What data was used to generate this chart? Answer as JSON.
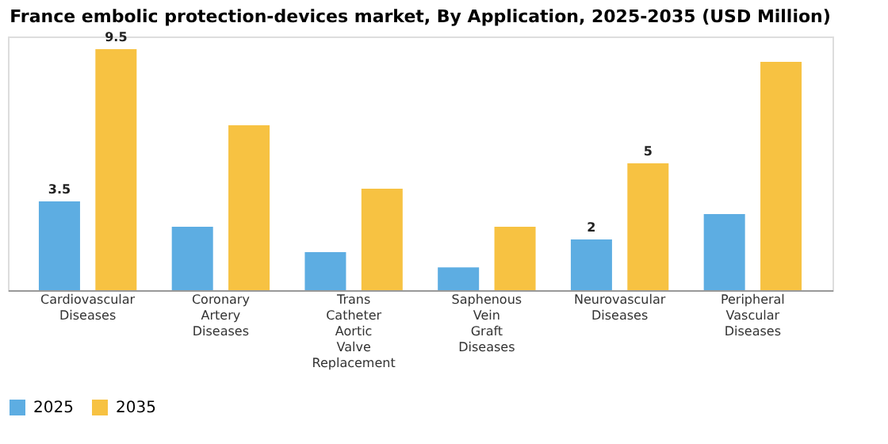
{
  "chart_data": {
    "type": "bar",
    "title": "France embolic protection-devices market, By Application, 2025-2035 (USD Million)",
    "categories": [
      "Cardiovascular Diseases",
      "Coronary Artery Diseases",
      "Trans Catheter Aortic Valve Replacement",
      "Saphenous Vein Graft Diseases",
      "Neurovascular Diseases",
      "Peripheral Vascular Diseases"
    ],
    "series": [
      {
        "name": "2025",
        "color": "#5dade2",
        "values": [
          3.5,
          2.5,
          1.5,
          0.9,
          2,
          3.0
        ],
        "value_labels": [
          "3.5",
          null,
          null,
          null,
          "2",
          null
        ]
      },
      {
        "name": "2035",
        "color": "#f7c242",
        "values": [
          9.5,
          6.5,
          4.0,
          2.5,
          5,
          9.0
        ],
        "value_labels": [
          "9.5",
          null,
          null,
          null,
          "5",
          null
        ]
      }
    ],
    "legend": "bottom",
    "grid": false
  }
}
